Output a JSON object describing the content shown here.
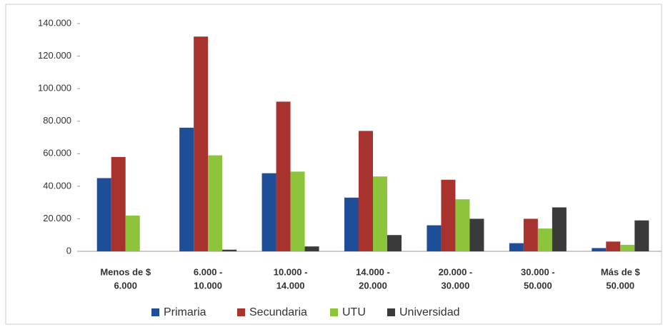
{
  "chart_data": {
    "type": "bar",
    "categories": [
      [
        "Menos de $",
        "6.000"
      ],
      [
        "6.000 -",
        "10.000"
      ],
      [
        "10.000 -",
        "14.000"
      ],
      [
        "14.000 -",
        "20.000"
      ],
      [
        "20.000 -",
        "30.000"
      ],
      [
        "30.000 -",
        "50.000"
      ],
      [
        "Más de $",
        "50.000"
      ]
    ],
    "series": [
      {
        "name": "Primaria",
        "color": "#1f4e99",
        "values": [
          45000,
          76000,
          48000,
          33000,
          16000,
          5000,
          2000
        ]
      },
      {
        "name": "Secundaria",
        "color": "#a8322d",
        "values": [
          58000,
          132000,
          92000,
          74000,
          44000,
          20000,
          6000
        ]
      },
      {
        "name": "UTU",
        "color": "#8cc43c",
        "values": [
          22000,
          59000,
          49000,
          46000,
          32000,
          14000,
          4000
        ]
      },
      {
        "name": "Universidad",
        "color": "#3a3a3a",
        "values": [
          0,
          1000,
          3000,
          10000,
          20000,
          27000,
          19000
        ]
      }
    ],
    "ylim": [
      0,
      140000
    ],
    "yticks": [
      0,
      {
        "value": 20000,
        "label": "20.000"
      },
      {
        "value": 40000,
        "label": "40.000"
      },
      {
        "value": 60000,
        "label": "60.000"
      },
      {
        "value": 80000,
        "label": "80.000"
      },
      {
        "value": 100000,
        "label": "100.000"
      },
      {
        "value": 120000,
        "label": "120.000"
      },
      {
        "value": 140000,
        "label": "140.000"
      }
    ],
    "legend": "bottom"
  }
}
